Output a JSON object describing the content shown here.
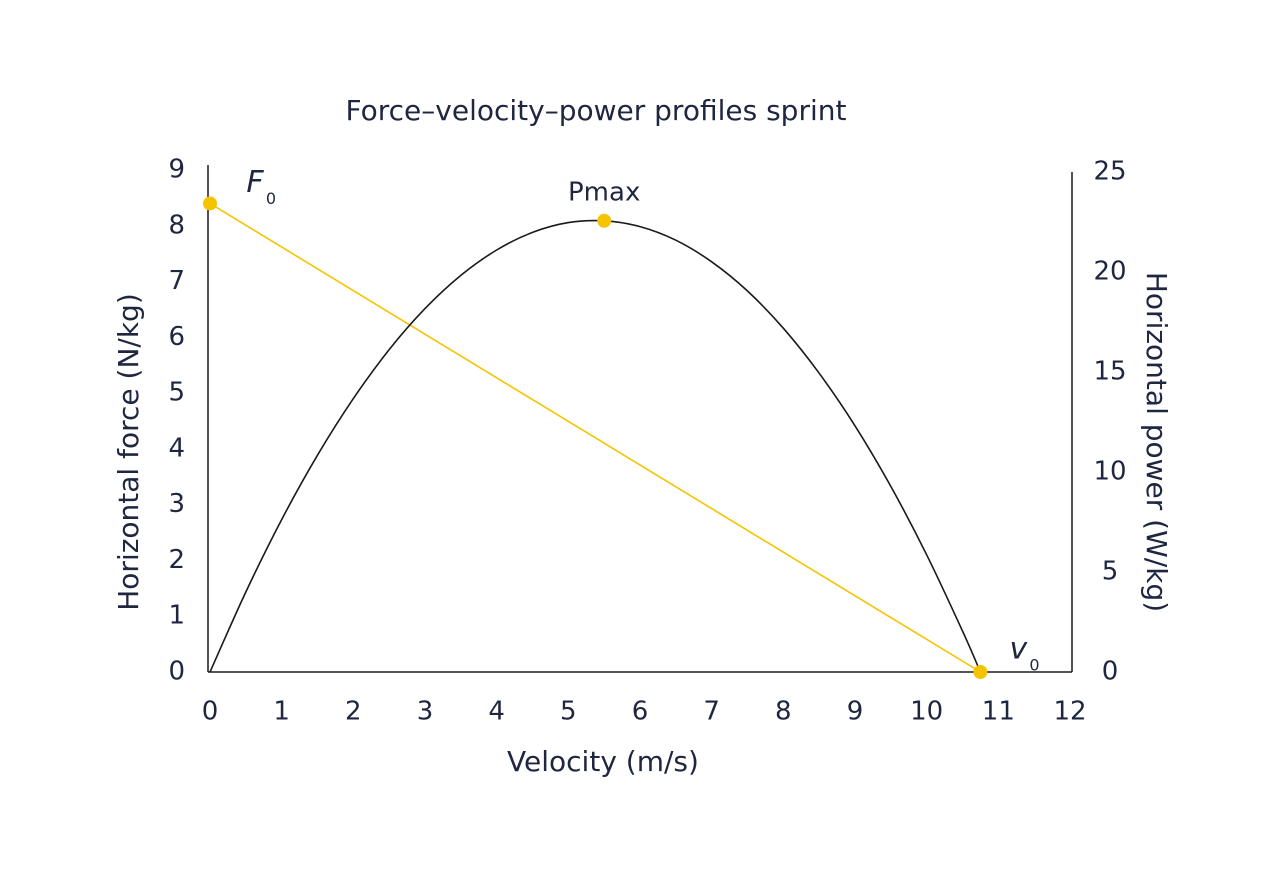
{
  "chart_data": {
    "type": "line",
    "title": "Force–velocity–power profiles sprint",
    "x_label": "Velocity (m/s)",
    "y_label": "Horizontal force (N/kg)",
    "y2_label": "Horizontal power (W/kg)",
    "xlim": [
      0,
      12
    ],
    "xticks": [
      0,
      1,
      2,
      3,
      4,
      5,
      6,
      7,
      8,
      9,
      10,
      11,
      12
    ],
    "ylim": [
      0,
      9
    ],
    "yticks": [
      0,
      1,
      2,
      3,
      4,
      5,
      6,
      7,
      8,
      9
    ],
    "y2lim": [
      0,
      25
    ],
    "y2ticks": [
      0,
      5,
      10,
      15,
      20,
      25
    ],
    "grid": false,
    "series": [
      {
        "color": "#f5c400",
        "x": [
          0,
          10.75
        ],
        "values": [
          8.4,
          0
        ]
      },
      {
        "color": "#1a1a1a",
        "axis": "y2",
        "x": [
          0,
          0.5,
          1,
          1.5,
          2,
          2.5,
          3,
          3.5,
          4,
          4.5,
          5,
          5.5,
          6,
          6.5,
          7,
          7.5,
          8,
          8.5,
          9,
          9.5,
          10,
          10.5,
          10.75
        ],
        "values": [
          0,
          4.0,
          7.62,
          10.84,
          13.67,
          16.12,
          18.17,
          19.83,
          21.1,
          21.98,
          22.47,
          22.56,
          22.27,
          21.59,
          20.51,
          19.05,
          17.19,
          14.94,
          12.31,
          9.28,
          5.86,
          2.05,
          0
        ]
      }
    ],
    "annotations": [
      {
        "text": "F",
        "sub": "0",
        "x": 0,
        "y": 8.4,
        "color": "#f5c400"
      },
      {
        "text": "Pmax",
        "x": 5.5,
        "y": 22.56,
        "axis": "y2",
        "color": "#f5c400"
      },
      {
        "text": "v",
        "sub": "0",
        "x": 10.75,
        "y": 0,
        "color": "#f5c400"
      }
    ]
  }
}
